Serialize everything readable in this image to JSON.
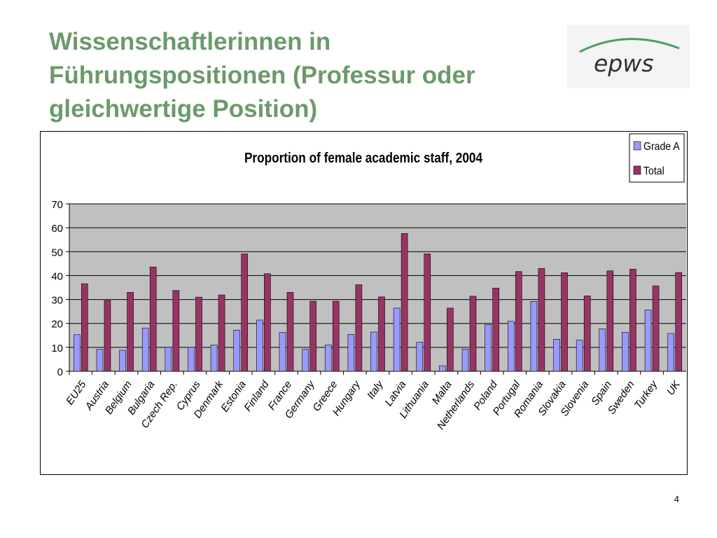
{
  "slide": {
    "title": "Wissenschaftlerinnen in Führungspositionen (Professur oder gleichwertige Position)",
    "title_color": "#6b9a6b",
    "page_number": "4"
  },
  "logo": {
    "text": "epws",
    "text_color": "#2d3138",
    "swoosh_color": "#4d9a66"
  },
  "chart_data": {
    "type": "bar",
    "title": "Proportion of female academic staff, 2004",
    "xlabel": "",
    "ylabel": "",
    "ylim": [
      0,
      70
    ],
    "yticks": [
      0,
      10,
      20,
      30,
      40,
      50,
      60,
      70
    ],
    "grid": true,
    "plot_background": "#c0c0c0",
    "legend": "top-right",
    "categories": [
      "EU25",
      "Austria",
      "Belgium",
      "Bulgaria",
      "Czech Rep.",
      "Cyprus",
      "Denmark",
      "Estonia",
      "Finland",
      "France",
      "Germany",
      "Greece",
      "Hungary",
      "Italy",
      "Latvia",
      "Lithuania",
      "Malta",
      "Netherlands",
      "Poland",
      "Portugal",
      "Romania",
      "Slovakia",
      "Slovenia",
      "Spain",
      "Sweden",
      "Turkey",
      "UK"
    ],
    "series": [
      {
        "name": "Grade A",
        "color": "#9999ff",
        "values": [
          15.3,
          9.2,
          8.8,
          18.1,
          10.0,
          10.0,
          11.0,
          17.2,
          21.4,
          16.3,
          9.2,
          11.0,
          15.4,
          16.4,
          26.4,
          12.1,
          2.3,
          9.3,
          19.5,
          20.9,
          29.2,
          13.4,
          13.0,
          17.7,
          16.3,
          25.6,
          15.8
        ]
      },
      {
        "name": "Total",
        "color": "#993366",
        "values": [
          36.6,
          29.6,
          33.0,
          43.6,
          33.8,
          31.0,
          31.9,
          49.1,
          40.8,
          33.0,
          29.3,
          29.3,
          36.2,
          31.1,
          57.6,
          49.1,
          26.4,
          31.4,
          34.8,
          41.7,
          43.0,
          41.2,
          31.5,
          42.0,
          42.7,
          35.7,
          41.3
        ]
      }
    ]
  }
}
